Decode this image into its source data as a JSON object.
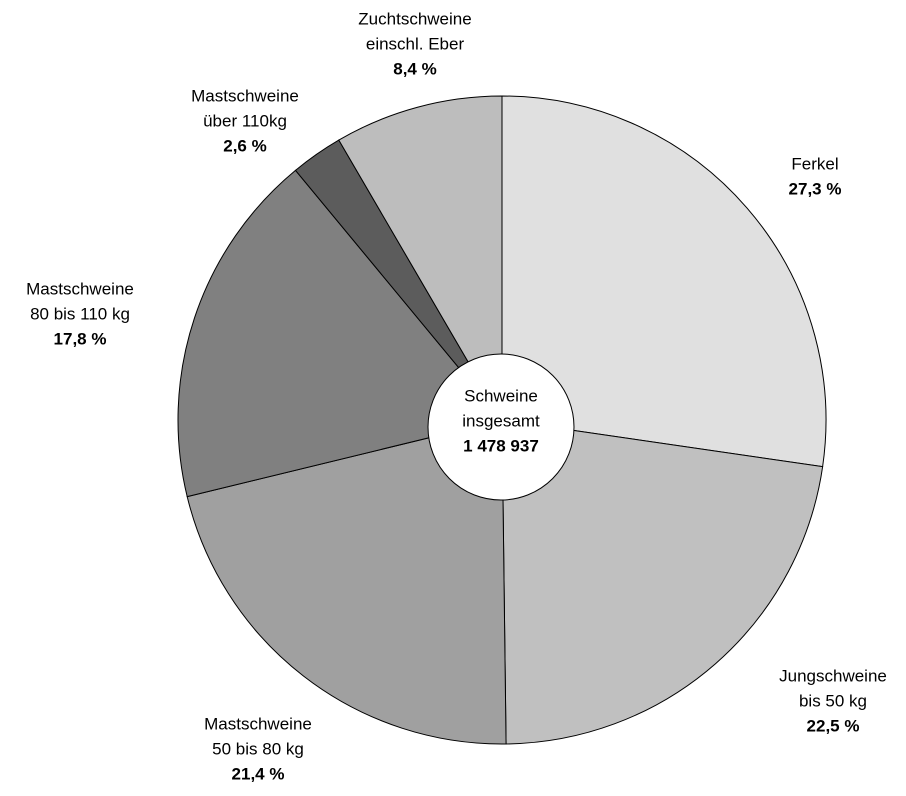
{
  "chart_data": {
    "type": "pie",
    "categories": [
      [
        "Ferkel"
      ],
      [
        "Jungschweine",
        "bis 50 kg"
      ],
      [
        "Mastschweine",
        "50 bis 80 kg"
      ],
      [
        "Mastschweine",
        "80 bis 110 kg"
      ],
      [
        "Mastschweine",
        "über 110kg"
      ],
      [
        "Zuchtschweine",
        "einschl. Eber"
      ]
    ],
    "values": [
      27.3,
      22.5,
      21.4,
      17.8,
      2.6,
      8.4
    ],
    "value_labels": [
      "27,3 %",
      "22,5 %",
      "21,4 %",
      "17,8 %",
      "2,6 %",
      "8,4 %"
    ],
    "colors": [
      "#e0e0e0",
      "#c0c0c0",
      "#a0a0a0",
      "#808080",
      "#5c5c5c",
      "#bdbdbd"
    ],
    "center_label": [
      "Schweine",
      "insgesamt"
    ],
    "total": {
      "value": 1478937,
      "label": "1 478 937"
    }
  }
}
